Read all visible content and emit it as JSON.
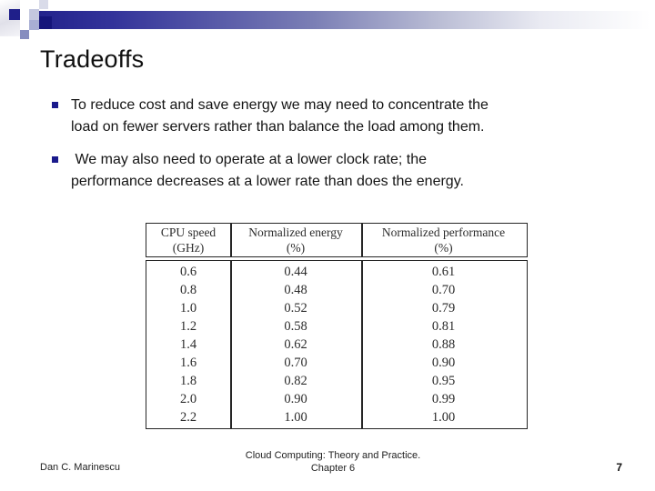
{
  "slide": {
    "title": "Tradeoffs",
    "bullets": [
      {
        "lines": [
          "To reduce cost and save energy we may need to concentrate the",
          "load on fewer servers rather than balance the load among them."
        ]
      },
      {
        "lines": [
          " We may also need to operate at a lower clock rate; the",
          "performance decreases at a lower rate than does the energy."
        ]
      }
    ]
  },
  "chart_data": {
    "type": "table",
    "columns": [
      "CPU speed (GHz)",
      "Normalized energy (%)",
      "Normalized performance (%)"
    ],
    "rows": [
      [
        "0.6",
        "0.44",
        "0.61"
      ],
      [
        "0.8",
        "0.48",
        "0.70"
      ],
      [
        "1.0",
        "0.52",
        "0.79"
      ],
      [
        "1.2",
        "0.58",
        "0.81"
      ],
      [
        "1.4",
        "0.62",
        "0.88"
      ],
      [
        "1.6",
        "0.70",
        "0.90"
      ],
      [
        "1.8",
        "0.82",
        "0.95"
      ],
      [
        "2.0",
        "0.90",
        "0.99"
      ],
      [
        "2.2",
        "1.00",
        "1.00"
      ]
    ]
  },
  "table_header": [
    {
      "line1": "CPU speed",
      "line2": "(GHz)"
    },
    {
      "line1": "Normalized energy",
      "line2": "(%)"
    },
    {
      "line1": "Normalized performance",
      "line2": "(%)"
    }
  ],
  "footer": {
    "author": "Dan C. Marinescu",
    "center_line1": "Cloud Computing: Theory and Practice.",
    "center_line2": "Chapter 6",
    "page_number": "7"
  },
  "colors": {
    "accent_navy": "#1f1f8a",
    "bullet_marker": "#1a1a8c",
    "bar_gradient_start": "#23238c",
    "table_border": "#262626"
  }
}
